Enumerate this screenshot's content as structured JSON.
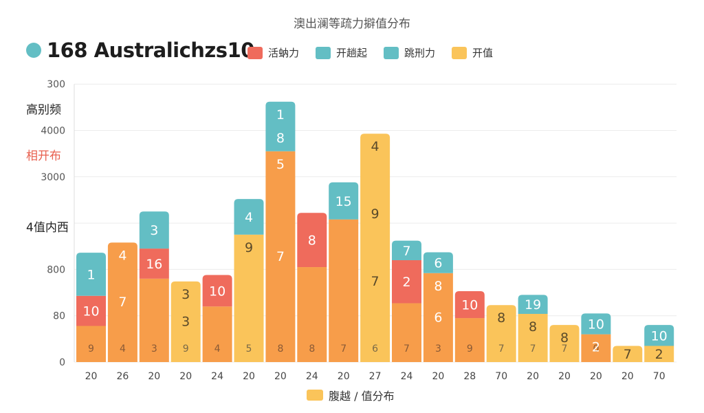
{
  "colors": {
    "orange": "#f79d4a",
    "red": "#ef6b5c",
    "teal": "#63bec4",
    "yellow": "#fac45a",
    "grid": "#ececec"
  },
  "header": {
    "subtitle": "澳出澜等疏力擗值分布",
    "title": "168 Australichzs10"
  },
  "side_labels": [
    "高别频",
    "相开布",
    "4值内西"
  ],
  "chart_data": {
    "type": "bar",
    "stacked": true,
    "title": "168 Australichzs10",
    "subtitle": "澳出澜等疏力擗值分布",
    "xlabel": "腹越 / 值分布",
    "legend": [
      {
        "label": "活蚋力",
        "color": "#ef6b5c"
      },
      {
        "label": "开趟起",
        "color": "#63bec4"
      },
      {
        "label": "跳刑力",
        "color": "#63bec4"
      },
      {
        "label": "开值",
        "color": "#fac45a"
      }
    ],
    "yticks": [
      {
        "label": "0",
        "v": 0
      },
      {
        "label": "80",
        "v": 1
      },
      {
        "label": "800",
        "v": 2
      },
      {
        "label": "",
        "v": 3
      },
      {
        "label": "3000",
        "v": 4
      },
      {
        "label": "4000",
        "v": 5
      },
      {
        "label": "300",
        "v": 6
      }
    ],
    "ylim": [
      0,
      6
    ],
    "categories": [
      "20",
      "26",
      "20",
      "20",
      "24",
      "20",
      "20",
      "24",
      "20",
      "27",
      "24",
      "20",
      "28",
      "70",
      "20",
      "20",
      "20",
      "20",
      "70"
    ],
    "bars": [
      {
        "segments": [
          {
            "value": 0.78,
            "color": "orange",
            "labels": [
              "9"
            ]
          },
          {
            "value": 0.65,
            "color": "red",
            "labels": [
              "10"
            ]
          },
          {
            "value": 0.93,
            "color": "teal",
            "labels": [
              "1"
            ]
          }
        ]
      },
      {
        "segments": [
          {
            "value": 2.58,
            "color": "orange",
            "labels": [
              "4",
              "7",
              "4"
            ]
          }
        ]
      },
      {
        "segments": [
          {
            "value": 1.8,
            "color": "orange",
            "labels": [
              "3"
            ]
          },
          {
            "value": 0.65,
            "color": "red",
            "labels": [
              "16"
            ]
          },
          {
            "value": 0.8,
            "color": "teal",
            "labels": [
              "3"
            ]
          }
        ]
      },
      {
        "segments": [
          {
            "value": 1.74,
            "color": "yellow",
            "labels": [
              "9",
              "3",
              "3"
            ]
          }
        ]
      },
      {
        "segments": [
          {
            "value": 1.2,
            "color": "orange",
            "labels": [
              "4"
            ]
          },
          {
            "value": 0.68,
            "color": "red",
            "labels": [
              "10"
            ]
          }
        ]
      },
      {
        "segments": [
          {
            "value": 2.75,
            "color": "yellow",
            "labels": [
              "5",
              "9"
            ]
          },
          {
            "value": 0.77,
            "color": "teal",
            "labels": [
              "4"
            ]
          }
        ]
      },
      {
        "segments": [
          {
            "value": 4.55,
            "color": "orange",
            "labels": [
              "8",
              "7",
              "5"
            ]
          },
          {
            "value": 1.07,
            "color": "teal",
            "labels": [
              "8",
              "1"
            ]
          }
        ]
      },
      {
        "segments": [
          {
            "value": 2.05,
            "color": "orange",
            "labels": [
              "8"
            ]
          },
          {
            "value": 1.17,
            "color": "red",
            "labels": [
              "8"
            ]
          }
        ]
      },
      {
        "segments": [
          {
            "value": 3.08,
            "color": "orange",
            "labels": [
              "7"
            ]
          },
          {
            "value": 0.8,
            "color": "teal",
            "labels": [
              "15"
            ]
          }
        ]
      },
      {
        "segments": [
          {
            "value": 4.93,
            "color": "yellow",
            "labels": [
              "6",
              "7",
              "9",
              "4"
            ]
          }
        ]
      },
      {
        "segments": [
          {
            "value": 1.27,
            "color": "orange",
            "labels": [
              "7"
            ]
          },
          {
            "value": 0.93,
            "color": "red",
            "labels": [
              "2"
            ]
          },
          {
            "value": 0.42,
            "color": "teal",
            "labels": [
              "7"
            ]
          }
        ]
      },
      {
        "segments": [
          {
            "value": 1.92,
            "color": "orange",
            "labels": [
              "3",
              "6",
              "8"
            ]
          },
          {
            "value": 0.45,
            "color": "teal",
            "labels": [
              "6"
            ]
          }
        ]
      },
      {
        "segments": [
          {
            "value": 0.95,
            "color": "orange",
            "labels": [
              "9"
            ]
          },
          {
            "value": 0.58,
            "color": "red",
            "labels": [
              "10"
            ]
          }
        ]
      },
      {
        "segments": [
          {
            "value": 1.23,
            "color": "yellow",
            "labels": [
              "7",
              "8"
            ]
          }
        ]
      },
      {
        "segments": [
          {
            "value": 1.04,
            "color": "yellow",
            "labels": [
              "7",
              "8"
            ]
          },
          {
            "value": 0.41,
            "color": "teal",
            "labels": [
              "19"
            ]
          }
        ]
      },
      {
        "segments": [
          {
            "value": 0.8,
            "color": "yellow",
            "labels": [
              "7",
              "8"
            ]
          }
        ]
      },
      {
        "segments": [
          {
            "value": 0.6,
            "color": "orange",
            "labels": [
              "0",
              "2"
            ]
          },
          {
            "value": 0.45,
            "color": "teal",
            "labels": [
              "10"
            ]
          }
        ]
      },
      {
        "segments": [
          {
            "value": 0.35,
            "color": "yellow",
            "labels": [
              "7"
            ]
          }
        ]
      },
      {
        "segments": [
          {
            "value": 0.35,
            "color": "yellow",
            "labels": [
              "2"
            ]
          },
          {
            "value": 0.45,
            "color": "teal",
            "labels": [
              "10"
            ]
          }
        ]
      }
    ]
  }
}
